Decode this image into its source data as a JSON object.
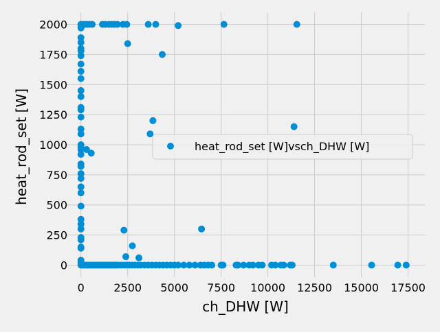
{
  "chart_data": {
    "type": "scatter",
    "title": "",
    "xlabel": "ch_DHW [W]",
    "ylabel": "heat_rod_set [W]",
    "xlim": [
      -800,
      18400
    ],
    "ylim": [
      -100,
      2100
    ],
    "xticks": [
      0,
      2500,
      5000,
      7500,
      10000,
      12500,
      15000,
      17500
    ],
    "xtick_labels": [
      "0",
      "2500",
      "5000",
      "7500",
      "10000",
      "12500",
      "15000",
      "17500"
    ],
    "yticks": [
      0,
      250,
      500,
      750,
      1000,
      1250,
      1500,
      1750,
      2000
    ],
    "ytick_labels": [
      "0",
      "250",
      "500",
      "750",
      "1000",
      "1250",
      "1500",
      "1750",
      "2000"
    ],
    "grid": true,
    "legend_position": "center-right",
    "colors": {
      "background": "#f0f0f0",
      "grid": "#cbcbcb",
      "marker": "#008fd5"
    },
    "series": [
      {
        "name": "heat_rod_set [W]vsch_DHW [W]",
        "points": [
          [
            0,
            2000
          ],
          [
            0,
            1990
          ],
          [
            0,
            1970
          ],
          [
            50,
            1990
          ],
          [
            150,
            2000
          ],
          [
            300,
            2000
          ],
          [
            450,
            2000
          ],
          [
            600,
            2000
          ],
          [
            1150,
            2000
          ],
          [
            1300,
            2000
          ],
          [
            1500,
            2000
          ],
          [
            1650,
            2000
          ],
          [
            1800,
            2000
          ],
          [
            1950,
            2000
          ],
          [
            2250,
            2000
          ],
          [
            2450,
            2000
          ],
          [
            3600,
            2000
          ],
          [
            4000,
            2000
          ],
          [
            5200,
            1990
          ],
          [
            7650,
            2000
          ],
          [
            11550,
            2000
          ],
          [
            0,
            1890
          ],
          [
            0,
            1850
          ],
          [
            0,
            1800
          ],
          [
            0,
            1780
          ],
          [
            0,
            1740
          ],
          [
            0,
            1670
          ],
          [
            0,
            1610
          ],
          [
            0,
            1550
          ],
          [
            0,
            1450
          ],
          [
            0,
            1400
          ],
          [
            0,
            1310
          ],
          [
            0,
            1290
          ],
          [
            0,
            1230
          ],
          [
            0,
            1130
          ],
          [
            0,
            1090
          ],
          [
            0,
            1000
          ],
          [
            0,
            980
          ],
          [
            0,
            960
          ],
          [
            0,
            920
          ],
          [
            0,
            840
          ],
          [
            0,
            820
          ],
          [
            0,
            760
          ],
          [
            0,
            720
          ],
          [
            0,
            650
          ],
          [
            0,
            600
          ],
          [
            0,
            490
          ],
          [
            0,
            380
          ],
          [
            0,
            340
          ],
          [
            0,
            300
          ],
          [
            0,
            230
          ],
          [
            0,
            210
          ],
          [
            0,
            150
          ],
          [
            0,
            140
          ],
          [
            0,
            40
          ],
          [
            0,
            20
          ],
          [
            2500,
            1840
          ],
          [
            4350,
            1750
          ],
          [
            3850,
            1200
          ],
          [
            3700,
            1090
          ],
          [
            11400,
            1150
          ],
          [
            300,
            960
          ],
          [
            550,
            930
          ],
          [
            2300,
            290
          ],
          [
            6450,
            300
          ],
          [
            2750,
            160
          ],
          [
            2400,
            70
          ],
          [
            3100,
            60
          ],
          [
            0,
            0
          ],
          [
            100,
            0
          ],
          [
            200,
            0
          ],
          [
            300,
            0
          ],
          [
            400,
            0
          ],
          [
            500,
            0
          ],
          [
            600,
            0
          ],
          [
            700,
            0
          ],
          [
            800,
            0
          ],
          [
            900,
            0
          ],
          [
            1000,
            0
          ],
          [
            1100,
            0
          ],
          [
            1200,
            0
          ],
          [
            1300,
            0
          ],
          [
            1400,
            0
          ],
          [
            1500,
            0
          ],
          [
            1600,
            0
          ],
          [
            1700,
            0
          ],
          [
            1800,
            0
          ],
          [
            1900,
            0
          ],
          [
            2000,
            0
          ],
          [
            2150,
            0
          ],
          [
            2300,
            0
          ],
          [
            2450,
            0
          ],
          [
            2600,
            0
          ],
          [
            2750,
            0
          ],
          [
            2900,
            0
          ],
          [
            3050,
            0
          ],
          [
            3200,
            0
          ],
          [
            3400,
            0
          ],
          [
            3600,
            0
          ],
          [
            3800,
            0
          ],
          [
            4000,
            0
          ],
          [
            4200,
            0
          ],
          [
            4400,
            0
          ],
          [
            4600,
            0
          ],
          [
            4800,
            0
          ],
          [
            5000,
            0
          ],
          [
            5200,
            0
          ],
          [
            5500,
            0
          ],
          [
            5800,
            0
          ],
          [
            6100,
            0
          ],
          [
            6400,
            0
          ],
          [
            6600,
            0
          ],
          [
            6800,
            0
          ],
          [
            7000,
            0
          ],
          [
            7500,
            0
          ],
          [
            7600,
            0
          ],
          [
            8300,
            0
          ],
          [
            8400,
            0
          ],
          [
            8700,
            0
          ],
          [
            9000,
            0
          ],
          [
            9200,
            0
          ],
          [
            9500,
            0
          ],
          [
            9700,
            0
          ],
          [
            10200,
            0
          ],
          [
            10400,
            0
          ],
          [
            10700,
            0
          ],
          [
            10850,
            0
          ],
          [
            11200,
            0
          ],
          [
            11300,
            0
          ],
          [
            13500,
            0
          ],
          [
            15550,
            0
          ],
          [
            16950,
            0
          ],
          [
            17400,
            0
          ]
        ]
      }
    ]
  }
}
